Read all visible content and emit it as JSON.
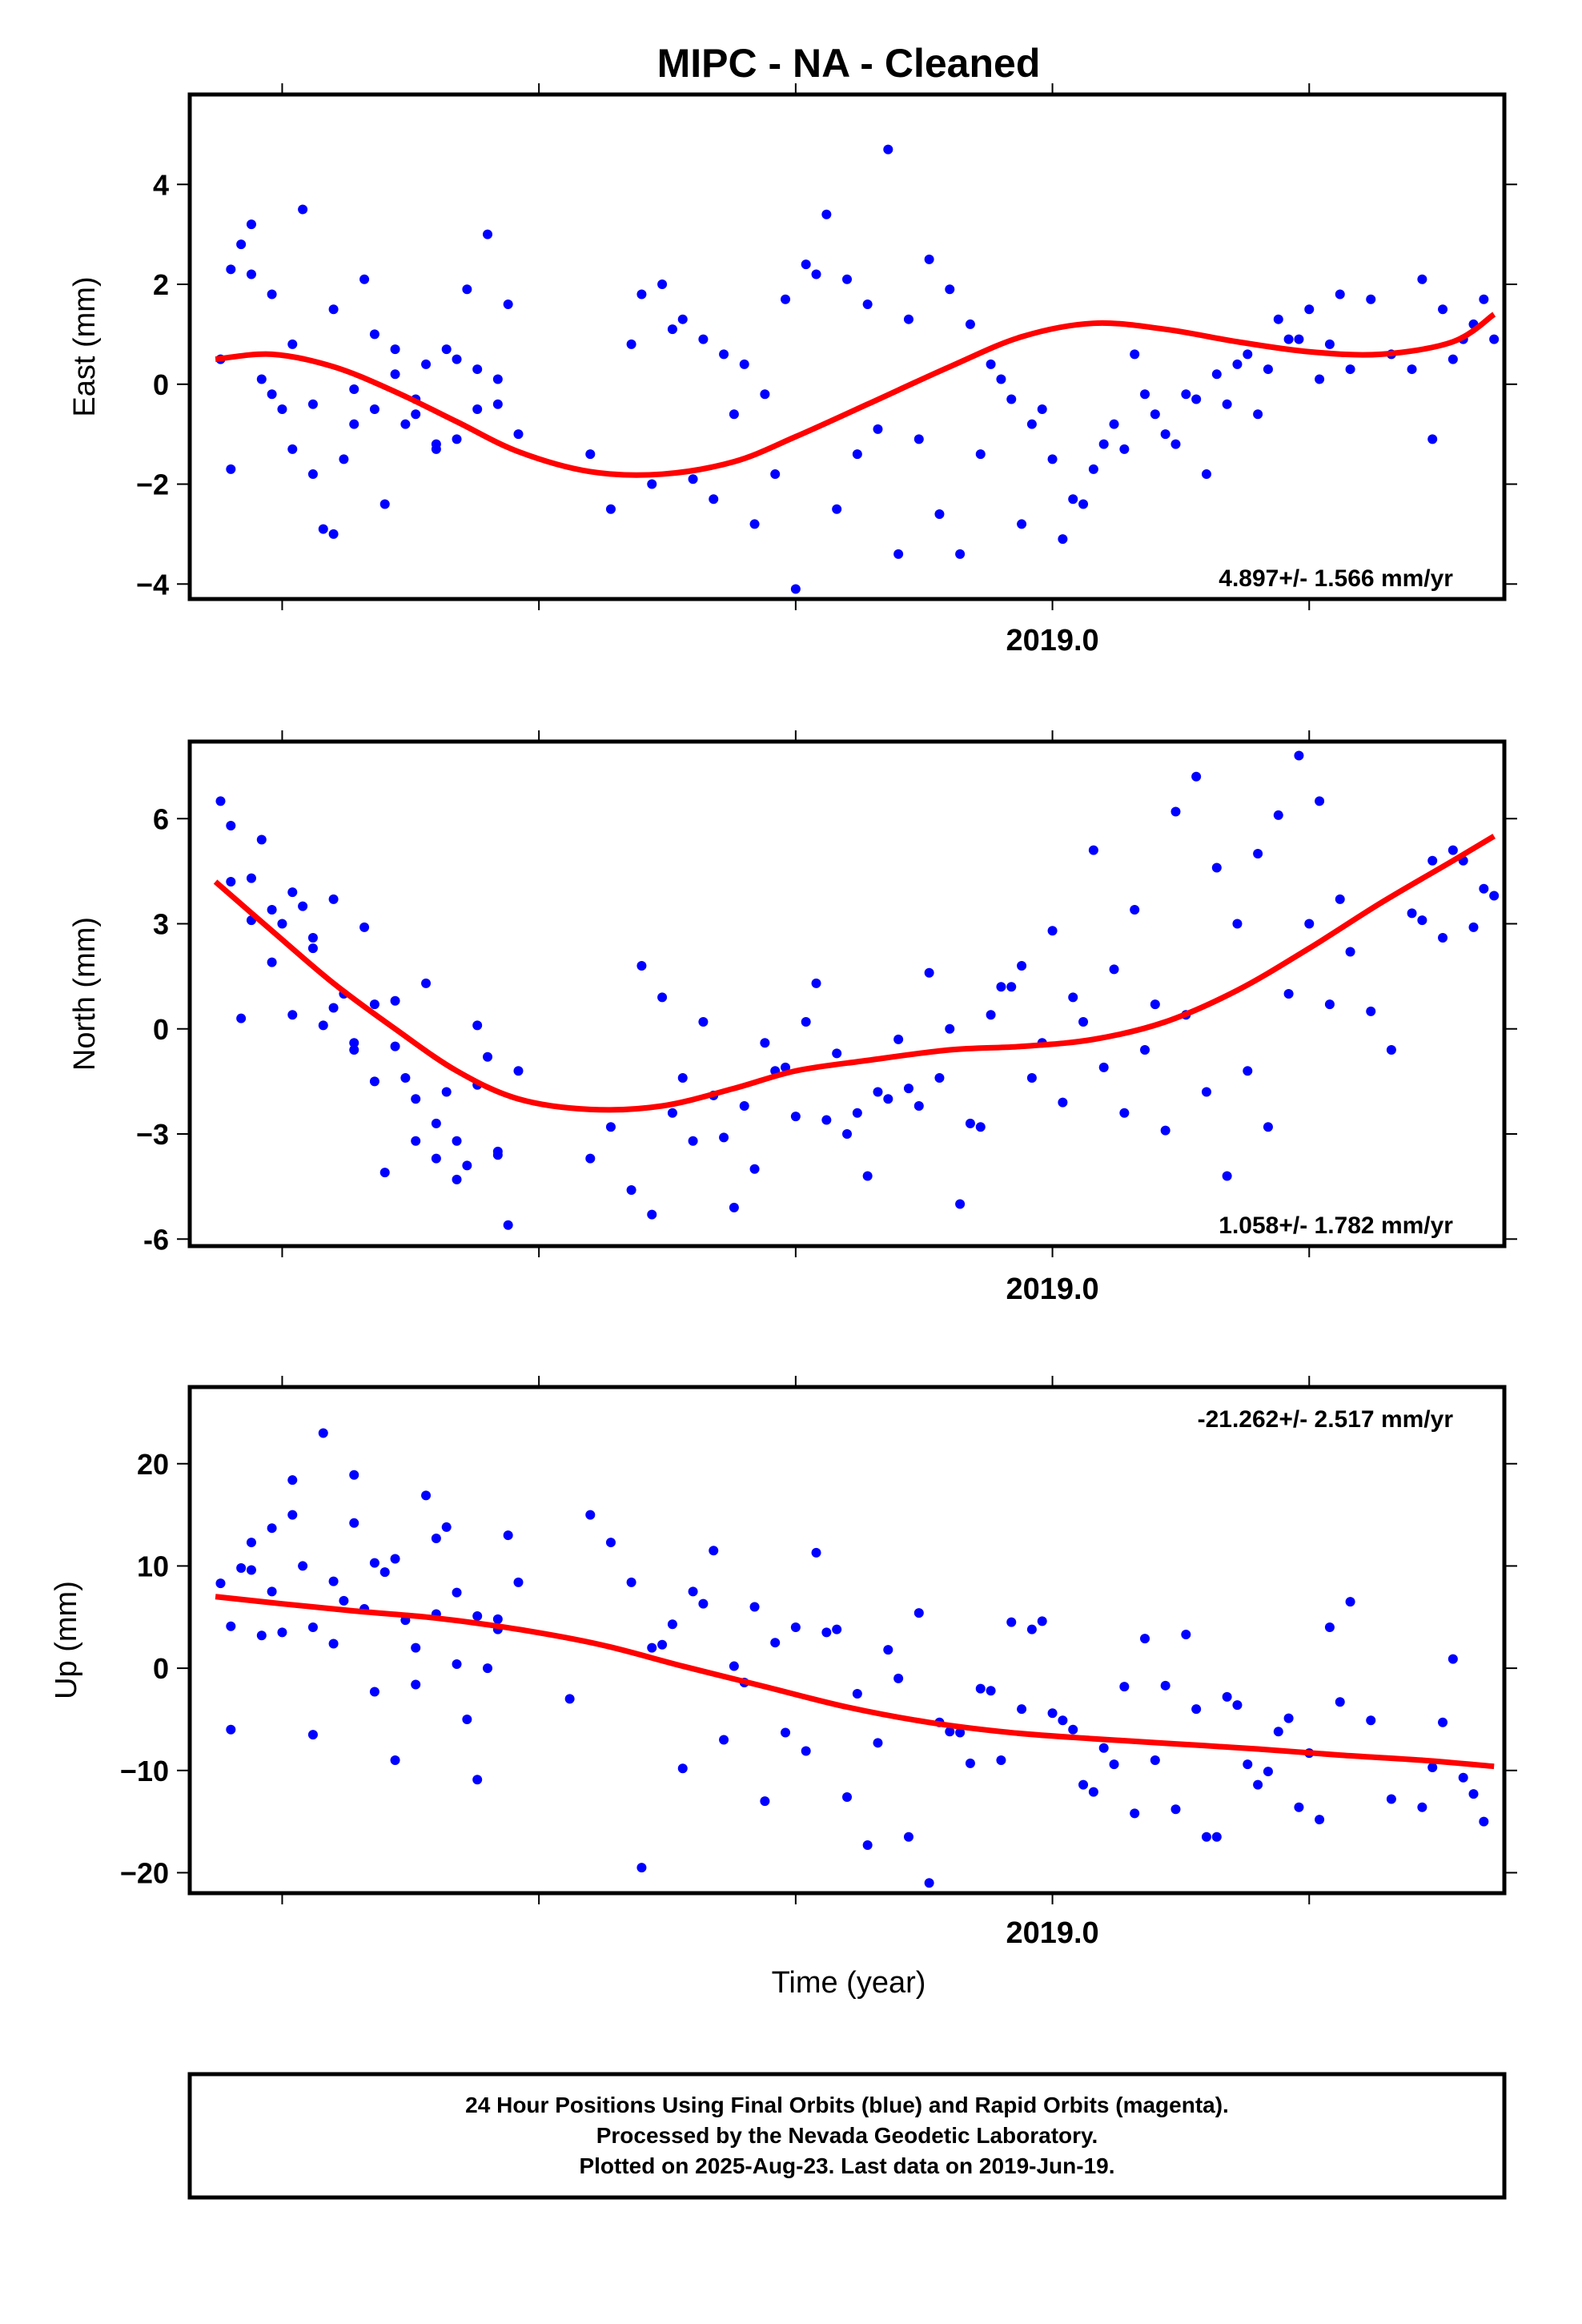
{
  "figure_title": "MIPC  - NA - Cleaned",
  "xlabel": "Time (year)",
  "footer": {
    "line1": "24 Hour Positions Using Final Orbits (blue) and Rapid Orbits (magenta).",
    "line2": "Processed by the Nevada Geodetic Laboratory.",
    "line3": "Plotted on 2025-Aug-23. Last data on 2019-Jun-19."
  },
  "colors": {
    "points": "#0000ff",
    "fit": "#ff0000",
    "frame": "#000000"
  },
  "chart_data": [
    {
      "type": "scatter",
      "title": "MIPC  - NA - Cleaned",
      "xlabel": "",
      "ylabel": "East (mm)",
      "rate": "4.897+/- 1.566 mm/yr",
      "xlim": [
        2018.16,
        2019.44
      ],
      "ylim": [
        -4.3,
        5.8
      ],
      "x_tick_labels": [
        {
          "value": 2019.0,
          "label": "2019.0"
        }
      ],
      "y_ticks": [
        -4,
        -2,
        0,
        2,
        4
      ],
      "y_tick_labels": [
        "−4",
        "−2",
        "0",
        "2",
        "4"
      ],
      "fit_line": {
        "x": [
          2018.185,
          2018.24,
          2018.3,
          2018.36,
          2018.42,
          2018.48,
          2018.55,
          2018.62,
          2018.69,
          2018.75,
          2018.82,
          2018.9,
          2018.97,
          2019.04,
          2019.11,
          2019.18,
          2019.25,
          2019.32,
          2019.39,
          2019.43
        ],
        "y": [
          0.5,
          0.6,
          0.35,
          -0.15,
          -0.75,
          -1.35,
          -1.75,
          -1.8,
          -1.55,
          -1.05,
          -0.4,
          0.35,
          0.95,
          1.22,
          1.1,
          0.85,
          0.65,
          0.6,
          0.85,
          1.4
        ]
      },
      "points": {
        "x": [
          2018.19,
          2018.2,
          2018.21,
          2018.22,
          2018.23,
          2018.24,
          2018.25,
          2018.26,
          2018.27,
          2018.28,
          2018.29,
          2018.3,
          2018.31,
          2018.32,
          2018.33,
          2018.34,
          2018.35,
          2018.36,
          2018.37,
          2018.38,
          2018.39,
          2018.4,
          2018.41,
          2018.42,
          2018.43,
          2018.44,
          2018.45,
          2018.46,
          2018.47,
          2018.48,
          2018.55,
          2018.57,
          2018.59,
          2018.61,
          2018.63,
          2018.65,
          2018.67,
          2018.69,
          2018.71,
          2018.73,
          2018.75,
          2018.77,
          2018.79,
          2018.81,
          2018.83,
          2018.85,
          2018.87,
          2018.89,
          2018.91,
          2018.93,
          2018.95,
          2018.97,
          2018.99,
          2019.01,
          2019.03,
          2019.05,
          2019.07,
          2019.09,
          2019.11,
          2019.13,
          2019.15,
          2019.17,
          2019.19,
          2019.21,
          2019.23,
          2019.25,
          2019.27,
          2019.29,
          2019.31,
          2019.33,
          2019.35,
          2019.37,
          2019.39,
          2019.41,
          2019.43,
          2018.2,
          2018.22,
          2018.24,
          2018.26,
          2018.28,
          2018.3,
          2018.32,
          2018.34,
          2018.36,
          2018.38,
          2018.4,
          2018.42,
          2018.44,
          2018.46,
          2018.6,
          2018.62,
          2018.64,
          2018.66,
          2018.68,
          2018.7,
          2018.72,
          2018.74,
          2018.76,
          2018.78,
          2018.8,
          2018.82,
          2018.84,
          2018.86,
          2018.88,
          2018.9,
          2018.92,
          2018.94,
          2018.96,
          2018.98,
          2019.0,
          2019.02,
          2019.04,
          2019.06,
          2019.08,
          2019.1,
          2019.12,
          2019.14,
          2019.16,
          2019.18,
          2019.2,
          2019.22,
          2019.24,
          2019.26,
          2019.28,
          2019.36,
          2019.38,
          2019.4,
          2019.42
        ],
        "y": [
          0.5,
          -1.7,
          2.8,
          2.2,
          0.1,
          1.8,
          -0.5,
          0.8,
          3.5,
          -1.8,
          -2.9,
          1.5,
          -1.5,
          -0.1,
          2.1,
          -0.5,
          -2.4,
          0.7,
          -0.8,
          -0.3,
          0.4,
          -1.3,
          0.7,
          0.5,
          1.9,
          -0.5,
          3.0,
          -0.4,
          1.6,
          -1.0,
          -1.4,
          -2.5,
          0.8,
          -2.0,
          1.1,
          -1.9,
          -2.3,
          -0.6,
          -2.8,
          -1.8,
          -4.1,
          2.2,
          -2.5,
          -1.4,
          -0.9,
          -3.4,
          -1.1,
          -2.6,
          -3.4,
          -1.4,
          0.1,
          -2.8,
          -0.5,
          -3.1,
          -2.4,
          -1.2,
          -1.3,
          -0.2,
          -1.0,
          -0.2,
          -1.8,
          -0.4,
          0.6,
          0.3,
          0.9,
          1.5,
          0.8,
          0.3,
          1.7,
          0.6,
          0.3,
          -1.1,
          0.5,
          1.2,
          0.9,
          2.3,
          3.2,
          -0.2,
          -1.3,
          -0.4,
          -3.0,
          -0.8,
          1.0,
          0.2,
          -0.6,
          -1.2,
          -1.1,
          0.3,
          0.1,
          1.8,
          2.0,
          1.3,
          0.9,
          0.6,
          0.4,
          -0.2,
          1.7,
          2.4,
          3.4,
          2.1,
          1.6,
          4.7,
          1.3,
          2.5,
          1.9,
          1.2,
          0.4,
          -0.3,
          -0.8,
          -1.5,
          -2.3,
          -1.7,
          -0.8,
          0.6,
          -0.6,
          -1.2,
          -0.3,
          0.2,
          0.4,
          -0.6,
          1.3,
          0.9,
          0.1,
          1.8,
          2.1,
          1.5,
          0.9,
          1.7
        ]
      },
      "x_tick_marks": [
        2018.25,
        2018.5,
        2018.75,
        2019.0,
        2019.25
      ]
    },
    {
      "type": "scatter",
      "xlabel": "",
      "ylabel": "North (mm)",
      "rate": "1.058+/- 1.782 mm/yr",
      "xlim": [
        2018.16,
        2019.44
      ],
      "ylim": [
        -6.2,
        8.2
      ],
      "x_tick_labels": [
        {
          "value": 2019.0,
          "label": "2019.0"
        }
      ],
      "y_ticks": [
        -6,
        -3,
        0,
        3,
        6
      ],
      "y_tick_labels": [
        "-6",
        "−3",
        "0",
        "3",
        "6"
      ],
      "fit_line": {
        "x": [
          2018.185,
          2018.24,
          2018.3,
          2018.36,
          2018.42,
          2018.48,
          2018.55,
          2018.62,
          2018.69,
          2018.75,
          2018.82,
          2018.9,
          2018.97,
          2019.04,
          2019.11,
          2019.18,
          2019.25,
          2019.32,
          2019.39,
          2019.43
        ],
        "y": [
          4.2,
          2.8,
          1.3,
          0.0,
          -1.2,
          -2.0,
          -2.3,
          -2.2,
          -1.7,
          -1.2,
          -0.9,
          -0.6,
          -0.5,
          -0.3,
          0.2,
          1.1,
          2.3,
          3.6,
          4.8,
          5.5
        ]
      },
      "points": {
        "x": [
          2018.19,
          2018.2,
          2018.21,
          2018.22,
          2018.23,
          2018.24,
          2018.25,
          2018.26,
          2018.27,
          2018.28,
          2018.29,
          2018.3,
          2018.31,
          2018.32,
          2018.33,
          2018.34,
          2018.35,
          2018.36,
          2018.37,
          2018.38,
          2018.39,
          2018.4,
          2018.41,
          2018.42,
          2018.43,
          2018.44,
          2018.45,
          2018.46,
          2018.47,
          2018.48,
          2018.55,
          2018.57,
          2018.59,
          2018.61,
          2018.63,
          2018.65,
          2018.67,
          2018.69,
          2018.71,
          2018.73,
          2018.75,
          2018.77,
          2018.79,
          2018.81,
          2018.83,
          2018.85,
          2018.87,
          2018.89,
          2018.91,
          2018.93,
          2018.95,
          2018.97,
          2018.99,
          2019.01,
          2019.03,
          2019.05,
          2019.07,
          2019.09,
          2019.11,
          2019.13,
          2019.15,
          2019.17,
          2019.19,
          2019.21,
          2019.23,
          2019.25,
          2019.27,
          2019.29,
          2019.31,
          2019.33,
          2019.35,
          2019.37,
          2019.39,
          2019.41,
          2019.43,
          2018.2,
          2018.22,
          2018.24,
          2018.26,
          2018.28,
          2018.3,
          2018.32,
          2018.34,
          2018.36,
          2018.38,
          2018.4,
          2018.42,
          2018.44,
          2018.46,
          2018.6,
          2018.62,
          2018.64,
          2018.66,
          2018.68,
          2018.7,
          2018.72,
          2018.74,
          2018.76,
          2018.78,
          2018.8,
          2018.82,
          2018.84,
          2018.86,
          2018.88,
          2018.9,
          2018.92,
          2018.94,
          2018.96,
          2018.98,
          2019.0,
          2019.02,
          2019.04,
          2019.06,
          2019.08,
          2019.1,
          2019.12,
          2019.14,
          2019.16,
          2019.18,
          2019.2,
          2019.22,
          2019.24,
          2019.26,
          2019.28,
          2019.36,
          2019.38,
          2019.4,
          2019.42
        ],
        "y": [
          6.5,
          4.2,
          0.3,
          3.1,
          5.4,
          1.9,
          3.0,
          0.4,
          3.5,
          2.6,
          0.1,
          3.7,
          1.0,
          -0.4,
          2.9,
          0.7,
          -4.1,
          0.8,
          -1.4,
          -3.2,
          1.3,
          -3.7,
          -1.8,
          -4.3,
          -3.9,
          0.1,
          -0.8,
          -3.6,
          -5.6,
          -1.2,
          -3.7,
          -2.8,
          -4.6,
          -5.3,
          -2.4,
          -3.2,
          -1.9,
          -5.1,
          -4.0,
          -1.2,
          -2.5,
          1.3,
          -0.7,
          -2.4,
          -1.8,
          -0.3,
          -2.2,
          -1.4,
          -5.0,
          -2.8,
          1.2,
          1.8,
          -0.4,
          -2.1,
          0.2,
          -1.1,
          -2.4,
          -0.6,
          -2.9,
          0.4,
          -1.8,
          -4.2,
          -1.2,
          -2.8,
          1.0,
          3.0,
          0.7,
          2.2,
          0.5,
          -0.6,
          3.3,
          4.8,
          5.1,
          2.9,
          3.8,
          5.8,
          4.3,
          3.4,
          3.9,
          2.3,
          0.6,
          -0.6,
          -1.5,
          -0.5,
          -2.0,
          -2.7,
          -3.2,
          -1.6,
          -3.5,
          1.8,
          0.9,
          -1.4,
          0.2,
          -3.1,
          -2.2,
          -0.4,
          -1.1,
          0.2,
          -2.6,
          -3.0,
          -4.2,
          -2.0,
          -1.7,
          1.6,
          0.0,
          -2.7,
          0.4,
          1.2,
          -1.4,
          2.8,
          0.9,
          5.1,
          1.7,
          3.4,
          0.7,
          6.2,
          7.2,
          4.6,
          3.0,
          5.0,
          6.1,
          7.8,
          6.5,
          3.7,
          3.1,
          2.6,
          4.8,
          4.0
        ]
      },
      "x_tick_marks": [
        2018.25,
        2018.5,
        2018.75,
        2019.0,
        2019.25
      ]
    },
    {
      "type": "scatter",
      "xlabel": "Time (year)",
      "ylabel": "Up (mm)",
      "rate": "-21.262+/- 2.517 mm/yr",
      "xlim": [
        2018.16,
        2019.44
      ],
      "ylim": [
        -22,
        27.5
      ],
      "x_tick_labels": [
        {
          "value": 2019.0,
          "label": "2019.0"
        }
      ],
      "y_ticks": [
        -20,
        -10,
        0,
        10,
        20
      ],
      "y_tick_labels": [
        "−20",
        "−10",
        "0",
        "10",
        "20"
      ],
      "fit_line": {
        "x": [
          2018.185,
          2018.25,
          2018.32,
          2018.4,
          2018.48,
          2018.56,
          2018.64,
          2018.72,
          2018.8,
          2018.88,
          2018.96,
          2019.04,
          2019.12,
          2019.2,
          2019.28,
          2019.36,
          2019.43
        ],
        "y": [
          7.0,
          6.3,
          5.6,
          4.9,
          3.8,
          2.3,
          0.2,
          -1.8,
          -3.8,
          -5.3,
          -6.3,
          -6.9,
          -7.4,
          -7.9,
          -8.5,
          -9.0,
          -9.6
        ]
      },
      "points": {
        "x": [
          2018.19,
          2018.2,
          2018.21,
          2018.22,
          2018.23,
          2018.24,
          2018.25,
          2018.26,
          2018.27,
          2018.28,
          2018.29,
          2018.3,
          2018.31,
          2018.32,
          2018.33,
          2018.34,
          2018.35,
          2018.36,
          2018.37,
          2018.38,
          2018.39,
          2018.4,
          2018.41,
          2018.42,
          2018.43,
          2018.44,
          2018.45,
          2018.46,
          2018.47,
          2018.48,
          2018.53,
          2018.55,
          2018.57,
          2018.59,
          2018.61,
          2018.63,
          2018.65,
          2018.67,
          2018.69,
          2018.71,
          2018.73,
          2018.75,
          2018.77,
          2018.79,
          2018.81,
          2018.83,
          2018.85,
          2018.87,
          2018.89,
          2018.91,
          2018.93,
          2018.95,
          2018.97,
          2018.99,
          2019.01,
          2019.03,
          2019.05,
          2019.07,
          2019.09,
          2019.11,
          2019.13,
          2019.15,
          2019.17,
          2019.19,
          2019.21,
          2019.23,
          2019.25,
          2019.27,
          2019.29,
          2019.31,
          2019.33,
          2019.36,
          2019.38,
          2019.4,
          2019.42,
          2018.2,
          2018.22,
          2018.24,
          2018.26,
          2018.28,
          2018.3,
          2018.32,
          2018.34,
          2018.36,
          2018.38,
          2018.4,
          2018.42,
          2018.44,
          2018.46,
          2018.6,
          2018.62,
          2018.64,
          2018.66,
          2018.68,
          2018.7,
          2018.72,
          2018.74,
          2018.76,
          2018.78,
          2018.8,
          2018.82,
          2018.84,
          2018.86,
          2018.88,
          2018.9,
          2018.92,
          2018.94,
          2018.96,
          2018.98,
          2019.0,
          2019.02,
          2019.04,
          2019.06,
          2019.08,
          2019.1,
          2019.12,
          2019.14,
          2019.16,
          2019.18,
          2019.2,
          2019.22,
          2019.24,
          2019.26,
          2019.28,
          2019.37,
          2019.39,
          2019.41
        ],
        "y": [
          8.3,
          4.1,
          9.8,
          12.3,
          3.2,
          7.5,
          3.5,
          15.0,
          10.0,
          -6.5,
          23.0,
          2.4,
          6.6,
          18.9,
          5.8,
          10.3,
          9.4,
          10.7,
          4.7,
          2.0,
          16.9,
          5.3,
          13.8,
          7.4,
          -5.0,
          -10.9,
          0.0,
          4.8,
          13.0,
          8.4,
          -3.0,
          15.0,
          12.3,
          8.4,
          2.0,
          4.3,
          7.5,
          11.5,
          0.2,
          6.0,
          2.5,
          4.0,
          11.3,
          3.8,
          -2.5,
          -7.3,
          -1.0,
          5.4,
          -5.3,
          -6.3,
          -2.0,
          -9.0,
          -4.0,
          4.6,
          -5.1,
          -11.4,
          -7.8,
          -1.8,
          2.9,
          -1.7,
          3.3,
          -16.5,
          -2.8,
          -9.4,
          -10.1,
          -4.9,
          -8.3,
          4.0,
          6.5,
          -5.1,
          -12.8,
          -13.6,
          -5.3,
          -10.7,
          -15.0,
          -6.0,
          9.6,
          13.7,
          18.4,
          4.0,
          8.5,
          14.2,
          -2.3,
          -9.0,
          -1.6,
          12.7,
          0.4,
          5.1,
          3.8,
          -19.5,
          2.3,
          -9.8,
          6.3,
          -7.0,
          -1.4,
          -13.0,
          -6.3,
          -8.1,
          3.5,
          -12.6,
          -17.3,
          1.8,
          -16.5,
          -21.0,
          -6.2,
          -9.3,
          -2.2,
          4.5,
          3.8,
          -4.4,
          -6.0,
          -12.1,
          -9.4,
          -14.2,
          -9.0,
          -13.8,
          -4.0,
          -16.5,
          -3.6,
          -11.4,
          -6.2,
          -13.6,
          -14.8,
          -3.3,
          -9.7,
          0.9,
          -12.3
        ]
      },
      "x_tick_marks": [
        2018.25,
        2018.5,
        2018.75,
        2019.0,
        2019.25
      ]
    }
  ]
}
